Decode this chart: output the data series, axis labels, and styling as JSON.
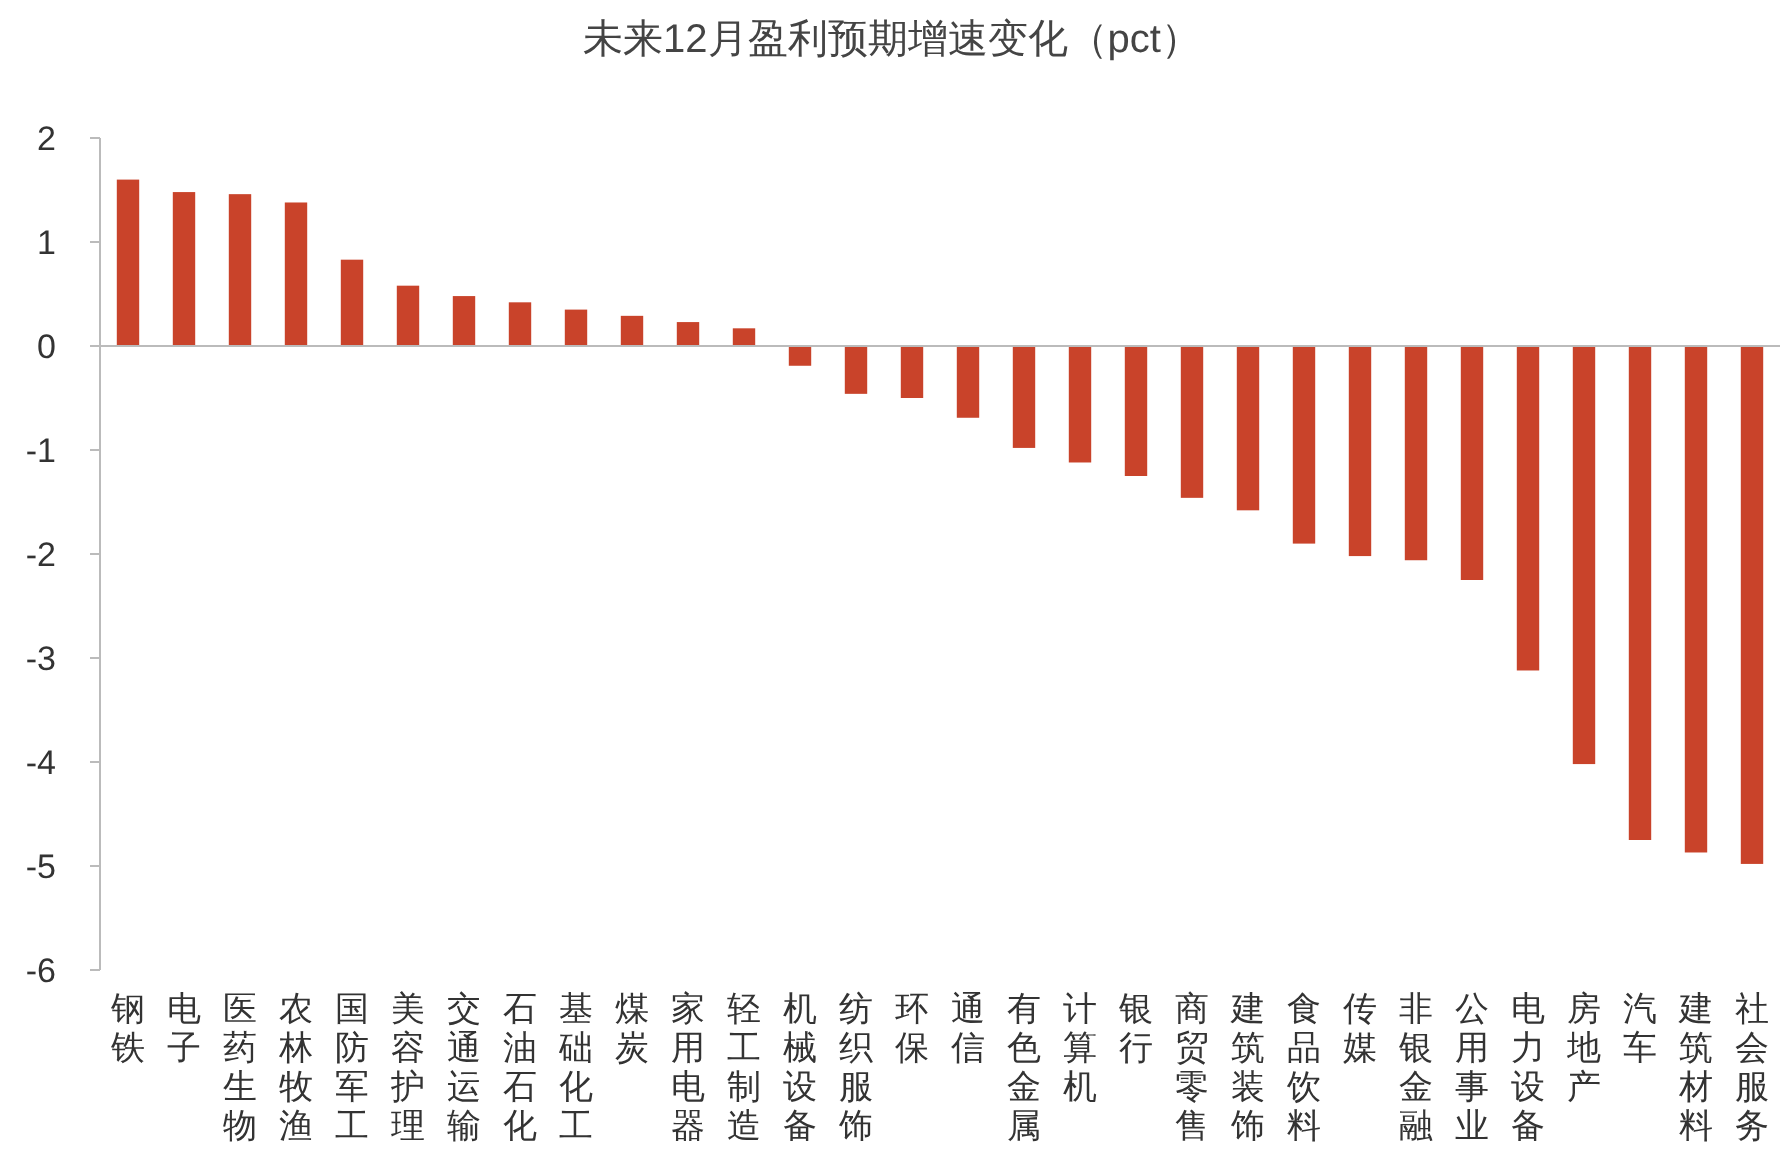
{
  "chart_data": {
    "type": "bar",
    "title": "未来12月盈利预期增速变化（pct）",
    "categories": [
      "钢铁",
      "电子",
      "医药生物",
      "农林牧渔",
      "国防军工",
      "美容护理",
      "交通运输",
      "石油石化",
      "基础化工",
      "煤炭",
      "家用电器",
      "轻工制造",
      "机械设备",
      "纺织服饰",
      "环保",
      "通信",
      "有色金属",
      "计算机",
      "银行",
      "商贸零售",
      "建筑装饰",
      "食品饮料",
      "传媒",
      "非银金融",
      "公用事业",
      "电力设备",
      "房地产",
      "汽车",
      "建筑材料",
      "社会服务"
    ],
    "values": [
      1.6,
      1.48,
      1.46,
      1.38,
      0.83,
      0.58,
      0.48,
      0.42,
      0.35,
      0.29,
      0.23,
      0.17,
      -0.19,
      -0.46,
      -0.5,
      -0.69,
      -0.98,
      -1.12,
      -1.25,
      -1.46,
      -1.58,
      -1.9,
      -2.02,
      -2.06,
      -2.25,
      -3.12,
      -4.02,
      -4.75,
      -4.87,
      -4.98
    ],
    "color": "#c9432a",
    "ylim": [
      -6,
      2
    ],
    "yticks": [
      -6,
      -5,
      -4,
      -3,
      -2,
      -1,
      0,
      1,
      2
    ]
  }
}
